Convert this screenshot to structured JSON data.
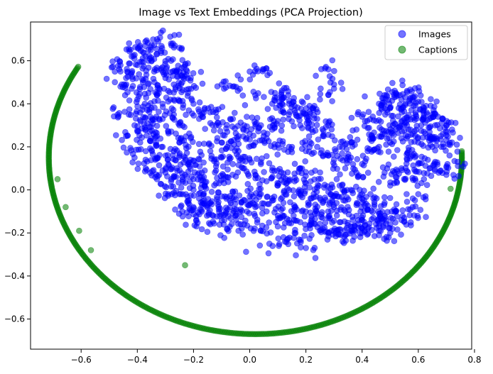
{
  "chart_data": {
    "type": "scatter",
    "title": "Image vs Text Embeddings (PCA Projection)",
    "xlabel": "",
    "ylabel": "",
    "xlim": [
      -0.78,
      0.79
    ],
    "ylim": [
      -0.74,
      0.78
    ],
    "xticks": [
      -0.6,
      -0.4,
      -0.2,
      0.0,
      0.2,
      0.4,
      0.6,
      0.8
    ],
    "xtick_labels": [
      "−0.6",
      "−0.4",
      "−0.2",
      "0.0",
      "0.2",
      "0.4",
      "0.6",
      "0.8"
    ],
    "yticks": [
      -0.6,
      -0.4,
      -0.2,
      0.0,
      0.2,
      0.4,
      0.6
    ],
    "ytick_labels": [
      "−0.6",
      "−0.4",
      "−0.2",
      "0.0",
      "0.2",
      "0.4",
      "0.6"
    ],
    "grid": false,
    "legend_position": "top-right",
    "series": [
      {
        "name": "Images",
        "color": "#0000ff",
        "alpha": 0.55,
        "points": [
          [
            -0.42,
            0.62
          ],
          [
            -0.4,
            0.58
          ],
          [
            -0.38,
            0.64
          ],
          [
            -0.36,
            0.6
          ],
          [
            -0.34,
            0.55
          ],
          [
            -0.33,
            0.63
          ],
          [
            -0.31,
            0.57
          ],
          [
            -0.3,
            0.52
          ],
          [
            -0.28,
            0.6
          ],
          [
            -0.27,
            0.49
          ],
          [
            -0.44,
            0.52
          ],
          [
            -0.42,
            0.47
          ],
          [
            -0.4,
            0.42
          ],
          [
            -0.38,
            0.5
          ],
          [
            -0.36,
            0.45
          ],
          [
            -0.35,
            0.38
          ],
          [
            -0.33,
            0.44
          ],
          [
            -0.31,
            0.4
          ],
          [
            -0.29,
            0.46
          ],
          [
            -0.27,
            0.42
          ],
          [
            -0.43,
            0.35
          ],
          [
            -0.41,
            0.3
          ],
          [
            -0.39,
            0.36
          ],
          [
            -0.37,
            0.28
          ],
          [
            -0.35,
            0.32
          ],
          [
            -0.33,
            0.25
          ],
          [
            -0.31,
            0.33
          ],
          [
            -0.29,
            0.27
          ],
          [
            -0.27,
            0.35
          ],
          [
            -0.25,
            0.3
          ],
          [
            -0.39,
            0.22
          ],
          [
            -0.37,
            0.18
          ],
          [
            -0.35,
            0.24
          ],
          [
            -0.33,
            0.15
          ],
          [
            -0.31,
            0.2
          ],
          [
            -0.29,
            0.12
          ],
          [
            -0.27,
            0.18
          ],
          [
            -0.25,
            0.22
          ],
          [
            -0.23,
            0.15
          ],
          [
            -0.21,
            0.24
          ],
          [
            -0.3,
            0.08
          ],
          [
            -0.28,
            0.04
          ],
          [
            -0.26,
            0.1
          ],
          [
            -0.24,
            0.06
          ],
          [
            -0.22,
            0.12
          ],
          [
            -0.2,
            0.05
          ],
          [
            -0.18,
            0.14
          ],
          [
            -0.16,
            0.09
          ],
          [
            -0.14,
            0.18
          ],
          [
            -0.12,
            0.11
          ],
          [
            -0.25,
            -0.02
          ],
          [
            -0.22,
            -0.05
          ],
          [
            -0.2,
            0.0
          ],
          [
            -0.18,
            -0.04
          ],
          [
            -0.16,
            0.02
          ],
          [
            -0.14,
            -0.06
          ],
          [
            -0.12,
            0.03
          ],
          [
            -0.1,
            -0.03
          ],
          [
            -0.08,
            0.06
          ],
          [
            -0.06,
            -0.01
          ],
          [
            -0.2,
            -0.08
          ],
          [
            -0.17,
            -0.1
          ],
          [
            -0.15,
            -0.07
          ],
          [
            -0.13,
            -0.12
          ],
          [
            -0.11,
            -0.09
          ],
          [
            -0.09,
            -0.14
          ],
          [
            -0.07,
            -0.08
          ],
          [
            -0.05,
            -0.12
          ],
          [
            -0.03,
            -0.06
          ],
          [
            -0.01,
            -0.1
          ],
          [
            -0.1,
            0.15
          ],
          [
            -0.08,
            0.2
          ],
          [
            -0.06,
            0.12
          ],
          [
            -0.04,
            0.18
          ],
          [
            -0.02,
            0.1
          ],
          [
            0.0,
            0.14
          ],
          [
            0.02,
            0.07
          ],
          [
            0.04,
            0.12
          ],
          [
            0.06,
            0.04
          ],
          [
            0.08,
            0.09
          ],
          [
            0.0,
            -0.03
          ],
          [
            0.02,
            -0.08
          ],
          [
            0.04,
            -0.02
          ],
          [
            0.06,
            -0.1
          ],
          [
            0.08,
            -0.05
          ],
          [
            0.1,
            -0.12
          ],
          [
            0.12,
            -0.06
          ],
          [
            0.14,
            -0.14
          ],
          [
            0.16,
            -0.08
          ],
          [
            0.18,
            -0.15
          ],
          [
            0.1,
            0.02
          ],
          [
            0.12,
            0.06
          ],
          [
            0.14,
            0.0
          ],
          [
            0.16,
            0.04
          ],
          [
            0.18,
            -0.02
          ],
          [
            0.2,
            0.03
          ],
          [
            0.22,
            -0.04
          ],
          [
            0.24,
            0.01
          ],
          [
            0.26,
            -0.06
          ],
          [
            0.28,
            -0.01
          ],
          [
            0.2,
            -0.1
          ],
          [
            0.22,
            -0.16
          ],
          [
            0.24,
            -0.11
          ],
          [
            0.26,
            -0.18
          ],
          [
            0.28,
            -0.13
          ],
          [
            0.3,
            -0.08
          ],
          [
            0.32,
            -0.15
          ],
          [
            0.34,
            -0.1
          ],
          [
            0.36,
            -0.17
          ],
          [
            0.38,
            -0.12
          ],
          [
            0.3,
            -0.03
          ],
          [
            0.32,
            0.02
          ],
          [
            0.34,
            -0.05
          ],
          [
            0.36,
            0.0
          ],
          [
            0.38,
            -0.07
          ],
          [
            0.4,
            -0.02
          ],
          [
            0.42,
            -0.09
          ],
          [
            0.44,
            -0.04
          ],
          [
            0.46,
            -0.11
          ],
          [
            0.48,
            -0.06
          ],
          [
            0.4,
            -0.14
          ],
          [
            0.42,
            -0.18
          ],
          [
            0.44,
            -0.13
          ],
          [
            0.46,
            -0.17
          ],
          [
            0.48,
            -0.12
          ],
          [
            0.5,
            -0.16
          ],
          [
            0.52,
            -0.1
          ],
          [
            0.54,
            -0.14
          ],
          [
            0.36,
            -0.19
          ],
          [
            0.3,
            -0.19
          ],
          [
            0.45,
            0.32
          ],
          [
            0.47,
            0.28
          ],
          [
            0.49,
            0.36
          ],
          [
            0.51,
            0.3
          ],
          [
            0.53,
            0.38
          ],
          [
            0.55,
            0.33
          ],
          [
            0.57,
            0.4
          ],
          [
            0.59,
            0.35
          ],
          [
            0.61,
            0.3
          ],
          [
            0.63,
            0.36
          ],
          [
            0.46,
            0.4
          ],
          [
            0.48,
            0.44
          ],
          [
            0.5,
            0.38
          ],
          [
            0.52,
            0.45
          ],
          [
            0.54,
            0.42
          ],
          [
            0.56,
            0.46
          ],
          [
            0.58,
            0.43
          ],
          [
            0.6,
            0.41
          ],
          [
            0.62,
            0.38
          ],
          [
            0.64,
            0.33
          ],
          [
            0.44,
            0.24
          ],
          [
            0.46,
            0.2
          ],
          [
            0.48,
            0.26
          ],
          [
            0.5,
            0.22
          ],
          [
            0.52,
            0.28
          ],
          [
            0.54,
            0.24
          ],
          [
            0.56,
            0.3
          ],
          [
            0.58,
            0.26
          ],
          [
            0.6,
            0.22
          ],
          [
            0.62,
            0.27
          ],
          [
            0.4,
            0.34
          ],
          [
            0.38,
            0.28
          ],
          [
            0.36,
            0.22
          ],
          [
            0.42,
            0.18
          ],
          [
            0.4,
            0.12
          ],
          [
            0.38,
            0.08
          ],
          [
            0.36,
            0.15
          ],
          [
            0.34,
            0.1
          ],
          [
            0.32,
            0.2
          ],
          [
            0.3,
            0.14
          ],
          [
            0.66,
            0.3
          ],
          [
            0.68,
            0.25
          ],
          [
            0.65,
            0.2
          ],
          [
            0.67,
            0.34
          ],
          [
            0.64,
            0.24
          ],
          [
            0.7,
            0.3
          ],
          [
            0.72,
            0.28
          ],
          [
            0.69,
            0.2
          ],
          [
            0.66,
            0.13
          ],
          [
            0.68,
            0.09
          ],
          [
            0.28,
            0.3
          ],
          [
            0.26,
            0.25
          ],
          [
            0.24,
            0.33
          ],
          [
            0.22,
            0.28
          ],
          [
            0.2,
            0.35
          ],
          [
            0.18,
            0.3
          ],
          [
            0.16,
            0.37
          ],
          [
            0.14,
            0.4
          ],
          [
            0.12,
            0.36
          ],
          [
            0.1,
            0.32
          ],
          [
            0.08,
            0.28
          ],
          [
            0.06,
            0.24
          ],
          [
            0.04,
            0.3
          ],
          [
            0.02,
            0.22
          ],
          [
            0.0,
            0.26
          ],
          [
            -0.02,
            0.3
          ],
          [
            -0.04,
            0.25
          ],
          [
            -0.06,
            0.33
          ],
          [
            -0.08,
            0.27
          ],
          [
            -0.1,
            0.22
          ],
          [
            -0.2,
            0.4
          ],
          [
            -0.18,
            0.33
          ],
          [
            -0.16,
            0.38
          ],
          [
            -0.14,
            0.31
          ],
          [
            -0.12,
            0.36
          ],
          [
            -0.22,
            0.45
          ],
          [
            -0.24,
            0.5
          ],
          [
            -0.26,
            0.55
          ],
          [
            -0.23,
            0.58
          ],
          [
            -0.21,
            0.52
          ],
          [
            -0.28,
            0.68
          ],
          [
            -0.33,
            0.7
          ],
          [
            -0.25,
            0.66
          ],
          [
            -0.36,
            0.65
          ],
          [
            -0.39,
            0.67
          ],
          [
            -0.46,
            0.58
          ],
          [
            -0.48,
            0.55
          ],
          [
            -0.46,
            0.48
          ],
          [
            -0.47,
            0.35
          ],
          [
            -0.44,
            0.25
          ],
          [
            -0.41,
            0.15
          ],
          [
            -0.37,
            0.1
          ],
          [
            -0.33,
            0.05
          ],
          [
            -0.29,
            -0.02
          ],
          [
            -0.24,
            -0.1
          ],
          [
            -0.19,
            -0.14
          ],
          [
            -0.14,
            -0.16
          ],
          [
            -0.08,
            -0.18
          ],
          [
            -0.02,
            -0.16
          ],
          [
            0.04,
            -0.19
          ],
          [
            0.1,
            -0.17
          ],
          [
            0.16,
            -0.2
          ],
          [
            0.22,
            -0.21
          ],
          [
            0.28,
            -0.2
          ],
          [
            0.34,
            -0.21
          ],
          [
            0.4,
            -0.2
          ],
          [
            0.46,
            -0.19
          ],
          [
            0.5,
            -0.2
          ],
          [
            0.55,
            -0.13
          ],
          [
            0.58,
            -0.08
          ],
          [
            0.6,
            -0.02
          ],
          [
            0.62,
            0.05
          ],
          [
            0.64,
            0.1
          ],
          [
            0.6,
            0.12
          ],
          [
            0.58,
            0.16
          ],
          [
            0.56,
            0.14
          ],
          [
            0.54,
            0.1
          ],
          [
            0.52,
            0.06
          ],
          [
            0.5,
            0.02
          ],
          [
            0.48,
            0.08
          ],
          [
            0.0,
            0.55
          ],
          [
            0.05,
            0.56
          ],
          [
            -0.06,
            0.48
          ],
          [
            0.02,
            0.44
          ],
          [
            0.08,
            0.4
          ],
          [
            0.09,
            0.45
          ],
          [
            0.12,
            0.43
          ],
          [
            0.16,
            0.39
          ],
          [
            0.19,
            0.36
          ],
          [
            0.23,
            0.39
          ],
          [
            0.25,
            0.42
          ],
          [
            0.28,
            0.56
          ],
          [
            0.3,
            0.49
          ],
          [
            0.24,
            0.2
          ],
          [
            0.26,
            0.16
          ],
          [
            0.2,
            0.18
          ],
          [
            0.14,
            0.2
          ],
          [
            0.1,
            0.21
          ],
          [
            0.18,
            0.1
          ],
          [
            0.22,
            0.08
          ],
          [
            0.12,
            -0.22
          ],
          [
            0.2,
            -0.27
          ],
          [
            0.07,
            -0.25
          ],
          [
            -0.04,
            -0.19
          ],
          [
            0.7,
            0.07
          ],
          [
            0.74,
            0.13
          ],
          [
            0.72,
            0.22
          ],
          [
            -0.23,
            0.07
          ],
          [
            -0.25,
            0.55
          ],
          [
            -0.1,
            0.49
          ]
        ]
      },
      {
        "name": "Captions",
        "color": "#008000",
        "alpha": 0.55,
        "curve": {
          "center": [
            0.02,
            0.15
          ],
          "rx": 0.735,
          "ry": 0.82,
          "start_point": [
            -0.6,
            0.565
          ],
          "end_point": [
            0.755,
            0.18
          ]
        },
        "points": [
          [
            -0.684,
            0.05
          ],
          [
            -0.655,
            -0.08
          ],
          [
            -0.607,
            -0.19
          ],
          [
            -0.565,
            -0.28
          ],
          [
            -0.23,
            -0.35
          ],
          [
            0.715,
            0.005
          ]
        ]
      }
    ]
  },
  "legend": {
    "items": [
      "Images",
      "Captions"
    ]
  }
}
